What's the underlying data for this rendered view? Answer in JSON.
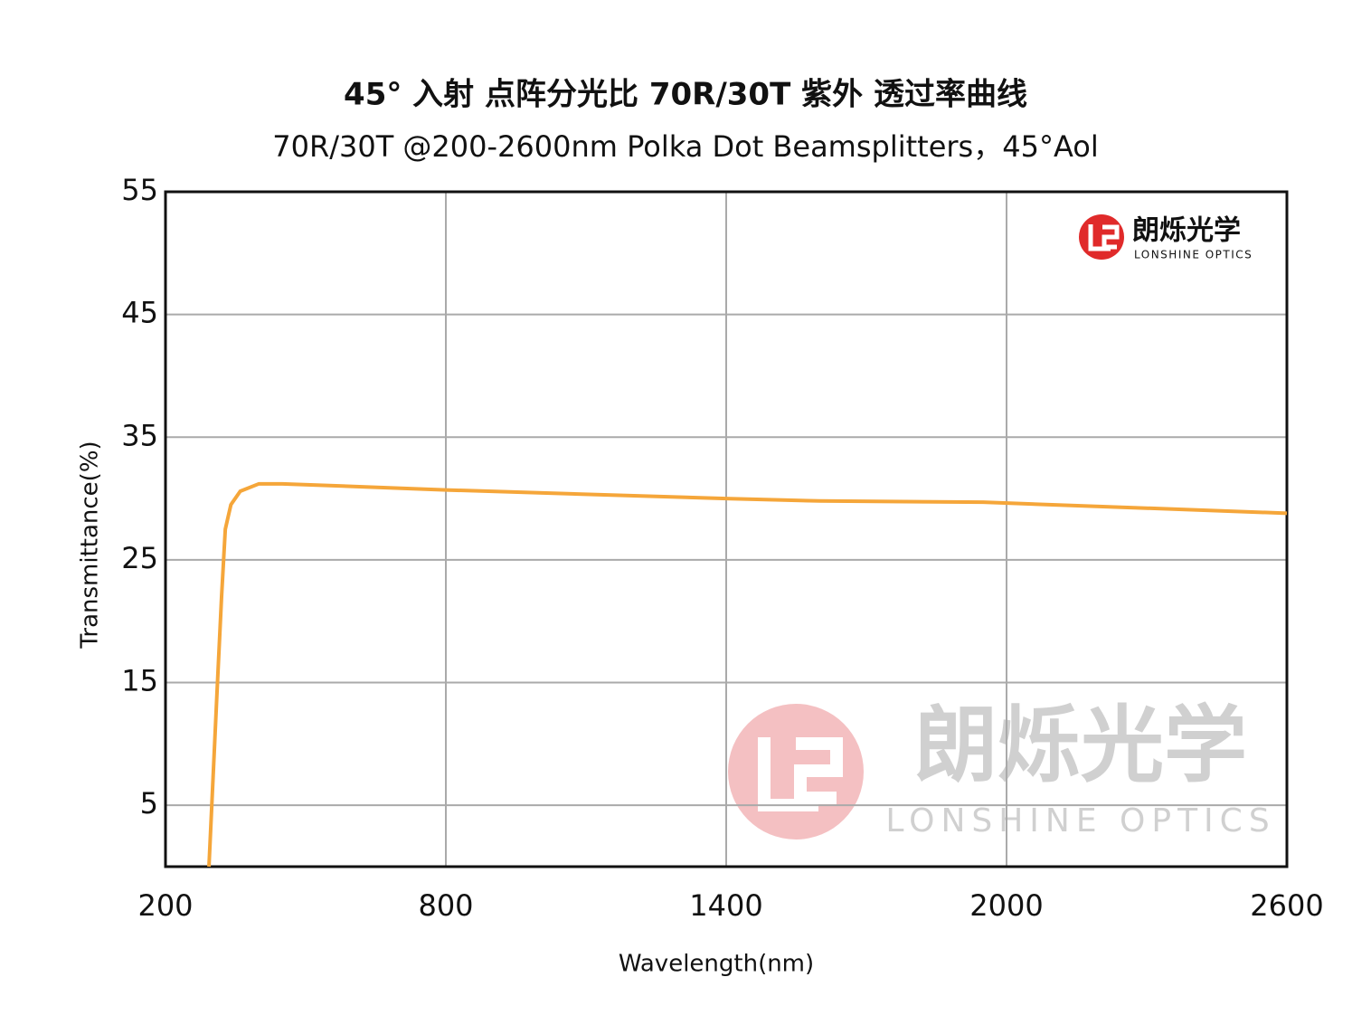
{
  "chart_data": {
    "type": "line",
    "title": "45° 入射 点阵分光比 70R/30T 紫外 透过率曲线",
    "subtitle": "70R/30T @200-2600nm  Polka Dot Beamsplitters，45°Aol",
    "x_label": "Wavelength(nm)",
    "y_label": "Transmittance(%)",
    "series": [
      {
        "color": "#f5a63a",
        "x": [
          293,
          310,
          320,
          328,
          340,
          360,
          400,
          450,
          800,
          1400,
          1600,
          1950,
          2600
        ],
        "values": [
          0,
          14,
          22,
          27.5,
          29.5,
          30.6,
          31.2,
          31.2,
          30.7,
          30.0,
          29.8,
          29.7,
          28.8
        ]
      }
    ],
    "xlim": [
      200,
      2600
    ],
    "xticks": [
      200,
      800,
      1400,
      2000,
      2600
    ],
    "ylim": [
      0,
      55
    ],
    "yticks": [
      5,
      15,
      25,
      35,
      45,
      55
    ],
    "grid": true
  },
  "logo": {
    "name": "朗烁光学",
    "subtitle": "LONSHINE OPTICS"
  }
}
